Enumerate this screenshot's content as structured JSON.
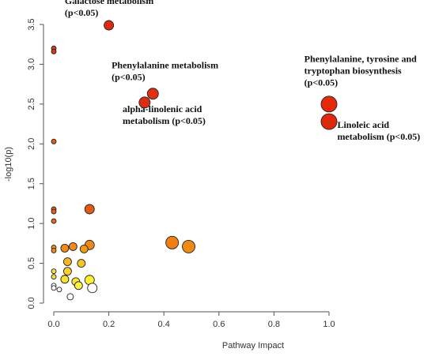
{
  "chart_data": {
    "type": "scatter",
    "title": "",
    "xlabel": "Pathway Impact",
    "ylabel": "-log10(p)",
    "xlim": [
      0,
      1
    ],
    "ylim": [
      0,
      3.5
    ],
    "xticks": [
      "0.0",
      "0.2",
      "0.4",
      "0.6",
      "0.8",
      "1.0"
    ],
    "yticks": [
      "0.0",
      "0.5",
      "1.0",
      "1.5",
      "2.0",
      "2.5",
      "3.0",
      "3.5"
    ],
    "grid": false,
    "color_scale": {
      "low": "#ffffff",
      "mid_low": "#ffff33",
      "mid": "#f5a623",
      "high": "#e0290d",
      "top": "#d90000"
    },
    "points": [
      {
        "x": 0.2,
        "y": 3.49,
        "size": 6,
        "color": "#dd2a10"
      },
      {
        "x": 0.0,
        "y": 3.2,
        "size": 3,
        "color": "#d93a1a"
      },
      {
        "x": 0.0,
        "y": 3.16,
        "size": 3,
        "color": "#d93a1a"
      },
      {
        "x": 0.36,
        "y": 2.63,
        "size": 7,
        "color": "#e0300f"
      },
      {
        "x": 0.33,
        "y": 2.52,
        "size": 7,
        "color": "#d92e12"
      },
      {
        "x": 1.0,
        "y": 2.5,
        "size": 10,
        "color": "#e6280c"
      },
      {
        "x": 1.0,
        "y": 2.28,
        "size": 10,
        "color": "#e0280c"
      },
      {
        "x": 0.0,
        "y": 2.03,
        "size": 3,
        "color": "#e05a1a"
      },
      {
        "x": 0.0,
        "y": 1.18,
        "size": 3,
        "color": "#e65f1a"
      },
      {
        "x": 0.0,
        "y": 1.15,
        "size": 3,
        "color": "#e65f1a"
      },
      {
        "x": 0.13,
        "y": 1.18,
        "size": 6,
        "color": "#e25a14"
      },
      {
        "x": 0.0,
        "y": 1.03,
        "size": 3,
        "color": "#ea6a1a"
      },
      {
        "x": 0.43,
        "y": 0.76,
        "size": 8,
        "color": "#ef7f14"
      },
      {
        "x": 0.49,
        "y": 0.71,
        "size": 8,
        "color": "#ef8a14"
      },
      {
        "x": 0.0,
        "y": 0.7,
        "size": 3,
        "color": "#ef8a1a"
      },
      {
        "x": 0.0,
        "y": 0.66,
        "size": 3,
        "color": "#ef8a1a"
      },
      {
        "x": 0.04,
        "y": 0.69,
        "size": 5,
        "color": "#f08a1a"
      },
      {
        "x": 0.07,
        "y": 0.71,
        "size": 5,
        "color": "#f08a1a"
      },
      {
        "x": 0.11,
        "y": 0.68,
        "size": 5,
        "color": "#f09a1a"
      },
      {
        "x": 0.13,
        "y": 0.73,
        "size": 6,
        "color": "#ee8a14"
      },
      {
        "x": 0.05,
        "y": 0.52,
        "size": 5,
        "color": "#f5b623"
      },
      {
        "x": 0.1,
        "y": 0.5,
        "size": 5,
        "color": "#f5c623"
      },
      {
        "x": 0.0,
        "y": 0.4,
        "size": 3,
        "color": "#f5e040"
      },
      {
        "x": 0.05,
        "y": 0.4,
        "size": 5,
        "color": "#f8d030"
      },
      {
        "x": 0.0,
        "y": 0.33,
        "size": 3,
        "color": "#f5e040"
      },
      {
        "x": 0.04,
        "y": 0.3,
        "size": 5,
        "color": "#fbe035"
      },
      {
        "x": 0.08,
        "y": 0.27,
        "size": 5,
        "color": "#fde535"
      },
      {
        "x": 0.13,
        "y": 0.29,
        "size": 6,
        "color": "#fff033"
      },
      {
        "x": 0.09,
        "y": 0.22,
        "size": 5,
        "color": "#fff04a"
      },
      {
        "x": 0.0,
        "y": 0.22,
        "size": 3,
        "color": "#ffffff"
      },
      {
        "x": 0.0,
        "y": 0.19,
        "size": 3,
        "color": "#ffffff"
      },
      {
        "x": 0.02,
        "y": 0.17,
        "size": 3,
        "color": "#ffffff"
      },
      {
        "x": 0.14,
        "y": 0.19,
        "size": 6,
        "color": "#ffffff"
      },
      {
        "x": 0.06,
        "y": 0.08,
        "size": 4,
        "color": "#ffffff"
      }
    ],
    "annotations": [
      {
        "lines": [
          "Galactose metabolism",
          "(p<0.05)"
        ],
        "anchor_x": 0.04,
        "anchor_y": 3.76
      },
      {
        "lines": [
          "Phenylalanine metabolism",
          "(p<0.05)"
        ],
        "anchor_x": 0.21,
        "anchor_y": 2.95
      },
      {
        "lines": [
          "alpha-linolenic acid",
          "metabolism (p<0.05)"
        ],
        "anchor_x": 0.25,
        "anchor_y": 2.4
      },
      {
        "lines": [
          "Phenylalanine, tyrosine and",
          "tryptophan biosynthesis",
          "(p<0.05)"
        ],
        "anchor_x": 0.91,
        "anchor_y": 3.03
      },
      {
        "lines": [
          "Linoleic acid",
          "metabolism (p<0.05)"
        ],
        "anchor_x": 1.03,
        "anchor_y": 2.2
      }
    ]
  }
}
